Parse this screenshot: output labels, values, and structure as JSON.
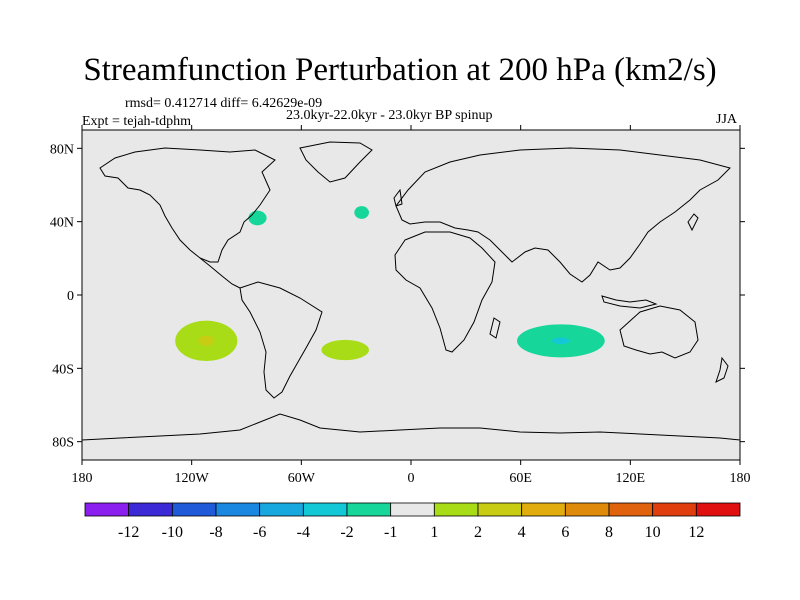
{
  "title": "Streamfunction Perturbation at 200 hPa (km2/s)",
  "stats": "rmsd= 0.412714 diff= 6.42629e-09",
  "experiment": "Expt = tejah-tdphm",
  "period": "23.0kyr-22.0kyr - 23.0kyr BP spinup",
  "season": "JJA",
  "lat_ticks": [
    "80N",
    "40N",
    "0",
    "40S",
    "80S"
  ],
  "lon_ticks": [
    "180",
    "120W",
    "60W",
    "0",
    "60E",
    "120E",
    "180"
  ],
  "legend": {
    "labels": [
      "-12",
      "-10",
      "-8",
      "-6",
      "-4",
      "-2",
      "-1",
      "1",
      "2",
      "4",
      "6",
      "8",
      "10",
      "12"
    ],
    "colors": [
      "#8a1ff0",
      "#3c2ad6",
      "#1f5ad9",
      "#1a87e0",
      "#18a8e0",
      "#12c8d6",
      "#16d69a",
      "#e8e8e8",
      "#a8dc16",
      "#c8cc12",
      "#e0ac0e",
      "#e08a0c",
      "#e0620c",
      "#e03e0c",
      "#e01010"
    ]
  },
  "map_data": {
    "projection": "cylindrical-equidistant",
    "lon_range": [
      -180,
      180
    ],
    "lat_range": [
      -90,
      90
    ],
    "background_color": "#e8e8e8",
    "anomalies": [
      {
        "name": "east-pacific-positive",
        "lon": -112,
        "lat": -25,
        "lon_radius": 17,
        "lat_radius": 11,
        "outer_color": "#a8dc16",
        "inner_color": "#c8cc12",
        "inner_scale": 0.25
      },
      {
        "name": "south-atlantic-positive",
        "lon": -36,
        "lat": -30,
        "lon_radius": 13,
        "lat_radius": 5.5,
        "outer_color": "#a8dc16"
      },
      {
        "name": "indian-ocean-negative",
        "lon": 82,
        "lat": -25,
        "lon_radius": 24,
        "lat_radius": 9,
        "outer_color": "#16d69a",
        "inner_color": "#12c8d6",
        "inner_scale": 0.2
      },
      {
        "name": "north-america-negative",
        "lon": -84,
        "lat": 42,
        "lon_radius": 5,
        "lat_radius": 4,
        "outer_color": "#16d69a"
      },
      {
        "name": "north-atlantic-negative",
        "lon": -27,
        "lat": 45,
        "lon_radius": 4,
        "lat_radius": 3.5,
        "outer_color": "#16d69a"
      }
    ]
  }
}
